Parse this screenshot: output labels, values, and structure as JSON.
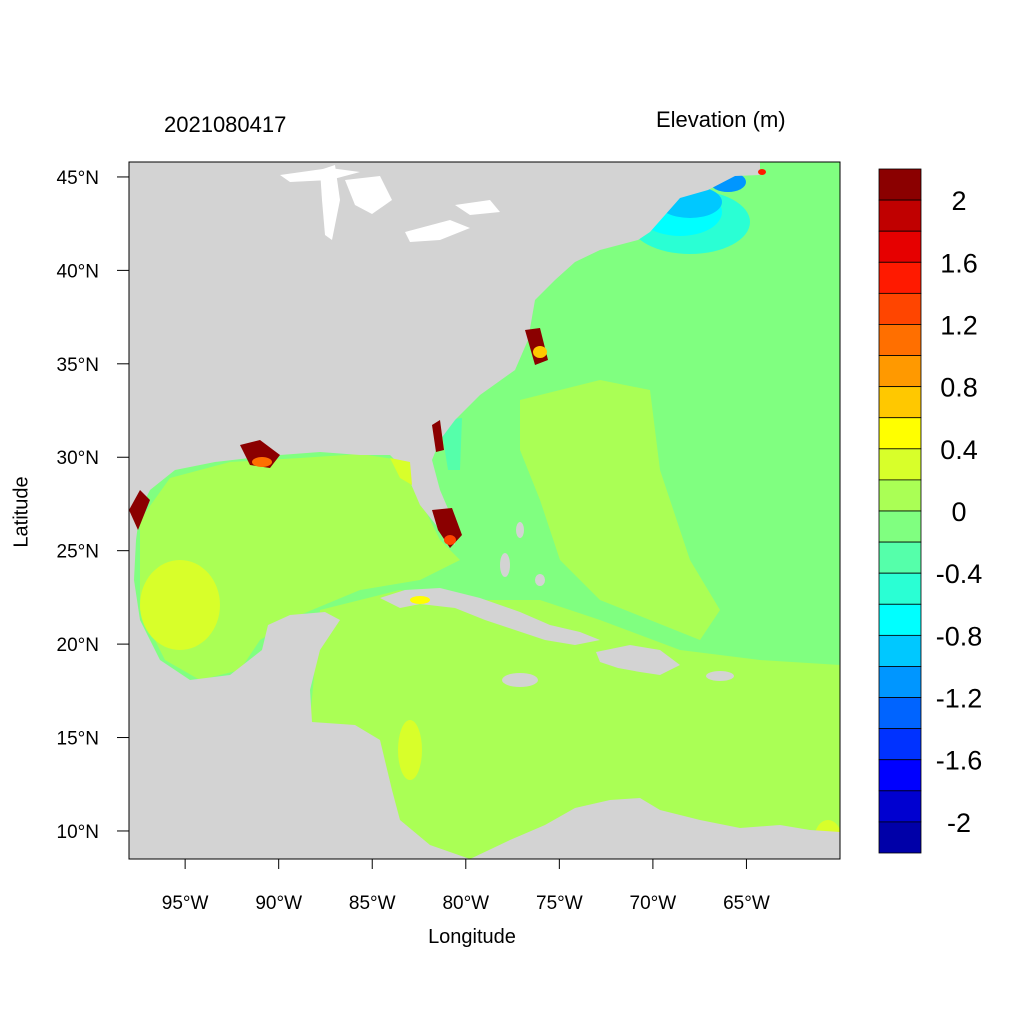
{
  "title_left": "2021080417",
  "title_right": "Elevation (m)",
  "xlabel": "Longitude",
  "ylabel": "Latitude",
  "map": {
    "lon_range": [
      -98,
      -60
    ],
    "lat_range": [
      8.5,
      45.8
    ],
    "x_ticks": [
      {
        "value": -95,
        "label": "95°W"
      },
      {
        "value": -90,
        "label": "90°W"
      },
      {
        "value": -85,
        "label": "85°W"
      },
      {
        "value": -80,
        "label": "80°W"
      },
      {
        "value": -75,
        "label": "75°W"
      },
      {
        "value": -70,
        "label": "70°W"
      },
      {
        "value": -65,
        "label": "65°W"
      }
    ],
    "y_ticks": [
      {
        "value": 45,
        "label": "45°N"
      },
      {
        "value": 40,
        "label": "40°N"
      },
      {
        "value": 35,
        "label": "35°N"
      },
      {
        "value": 30,
        "label": "30°N"
      },
      {
        "value": 25,
        "label": "25°N"
      },
      {
        "value": 20,
        "label": "20°N"
      },
      {
        "value": 15,
        "label": "15°N"
      },
      {
        "value": 10,
        "label": "10°N"
      }
    ],
    "land_color": "#d3d3d3",
    "ocean_color": "#80ff80"
  },
  "colorbar": {
    "colors": [
      "#8b0000",
      "#c00000",
      "#e60000",
      "#ff1a00",
      "#ff4500",
      "#ff6f00",
      "#ff9900",
      "#ffc800",
      "#ffff00",
      "#d8ff2a",
      "#aaff55",
      "#80ff80",
      "#55ffaa",
      "#2affd4",
      "#00ffff",
      "#00c8ff",
      "#0096ff",
      "#0064ff",
      "#0032ff",
      "#0000ff",
      "#0000d0",
      "#0000a8"
    ],
    "labels": [
      {
        "after_index": 0,
        "label": "2"
      },
      {
        "after_index": 2,
        "label": "1.6"
      },
      {
        "after_index": 4,
        "label": "1.2"
      },
      {
        "after_index": 6,
        "label": "0.8"
      },
      {
        "after_index": 8,
        "label": "0.4"
      },
      {
        "after_index": 10,
        "label": "0"
      },
      {
        "after_index": 12,
        "label": "-0.4"
      },
      {
        "after_index": 14,
        "label": "-0.8"
      },
      {
        "after_index": 16,
        "label": "-1.2"
      },
      {
        "after_index": 18,
        "label": "-1.6"
      },
      {
        "after_index": 20,
        "label": "-2"
      }
    ]
  }
}
